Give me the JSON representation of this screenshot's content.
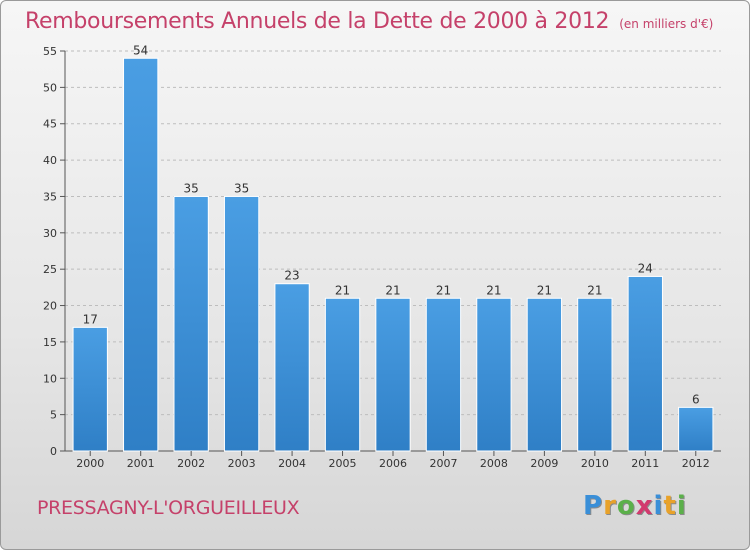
{
  "header": {
    "title": "Remboursements Annuels de la Dette de 2000 à 2012",
    "unit": "(en milliers d'€)"
  },
  "footer": {
    "commune": "PRESSAGNY-L'ORGUEILLEUX",
    "logo": {
      "letters": [
        "P",
        "r",
        "o",
        "x",
        "i",
        "t",
        "i"
      ],
      "colors": [
        "#3a8fd8",
        "#e8a22a",
        "#5bb04a",
        "#d23a6e",
        "#3a8fd8",
        "#e8a22a",
        "#5bb04a"
      ]
    }
  },
  "colors": {
    "bar": "#4a9ee3",
    "bar_dark": "#2f7fc6",
    "title": "#c5416a",
    "grid": "#bdbdbd"
  },
  "chart_data": {
    "type": "bar",
    "categories": [
      "2000",
      "2001",
      "2002",
      "2003",
      "2004",
      "2005",
      "2006",
      "2007",
      "2008",
      "2009",
      "2010",
      "2011",
      "2012"
    ],
    "values": [
      17,
      54,
      35,
      35,
      23,
      21,
      21,
      21,
      21,
      21,
      21,
      24,
      6
    ],
    "data_labels": [
      "17",
      "54",
      "35",
      "35",
      "23",
      "21",
      "21",
      "21",
      "21",
      "21",
      "21",
      "24",
      "6"
    ],
    "title": "Remboursements Annuels de la Dette de 2000 à 2012",
    "subtitle": "(en milliers d'€)",
    "xlabel": "",
    "ylabel": "",
    "ylim": [
      0,
      55
    ],
    "yticks": [
      0,
      5,
      10,
      15,
      20,
      25,
      30,
      35,
      40,
      45,
      50,
      55
    ],
    "grid": true,
    "legend": "none"
  }
}
